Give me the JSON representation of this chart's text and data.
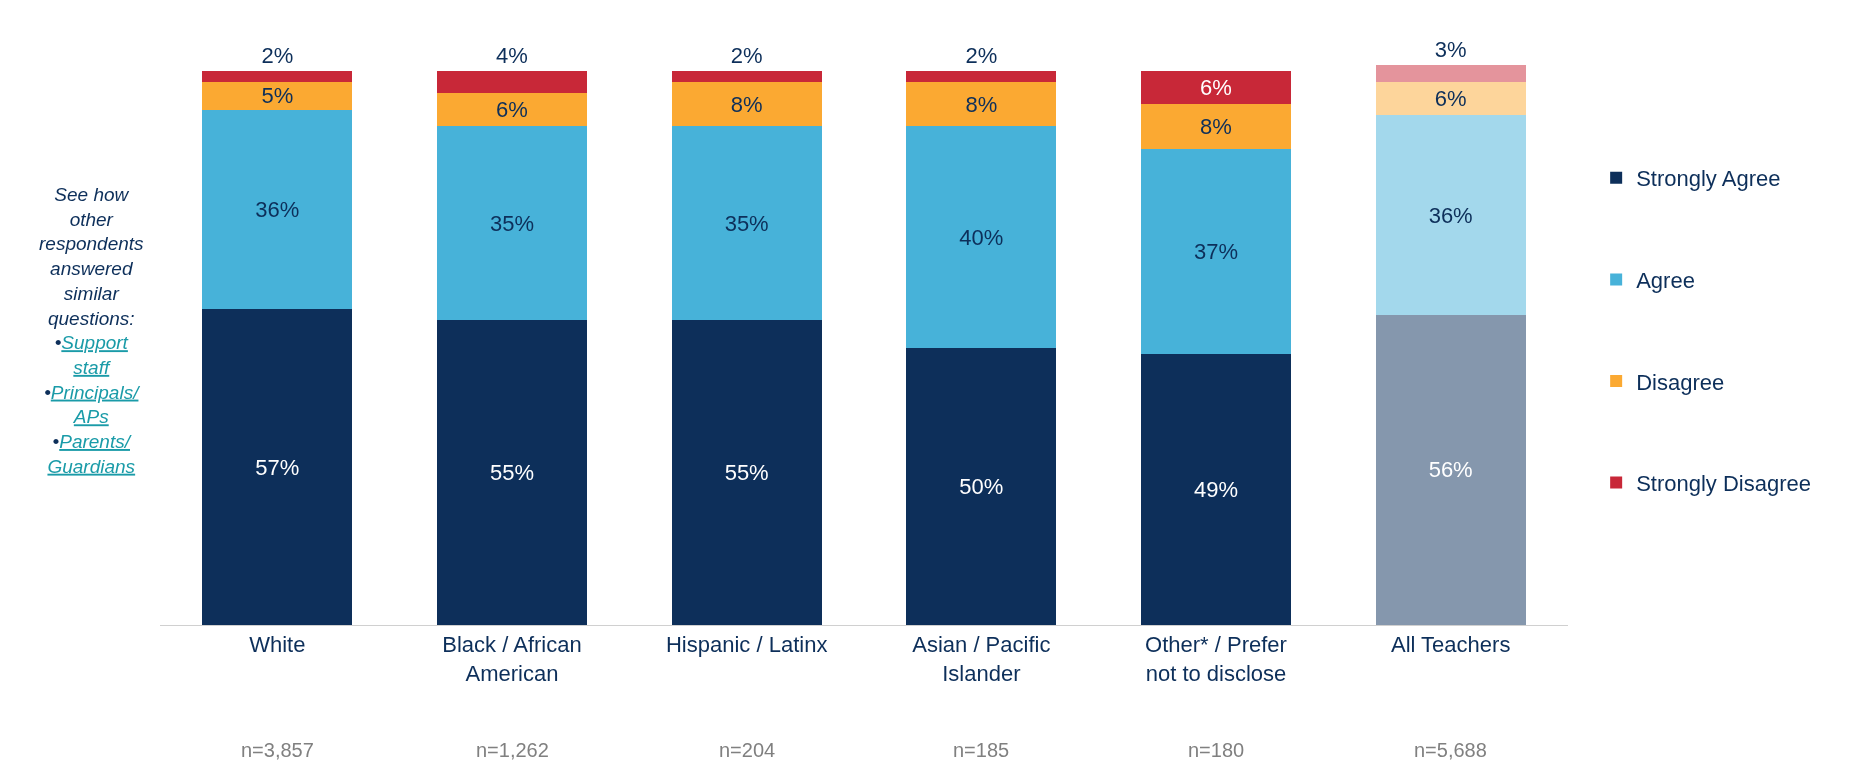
{
  "chart_data": {
    "type": "bar",
    "stacked": true,
    "legend": "right",
    "grid": false,
    "tick_labels": "x",
    "categories": [
      "White",
      "Black / African American",
      "Hispanic / Latinx",
      "Asian / Pacific Islander",
      "Other* / Prefer not to disclose",
      "All Teachers"
    ],
    "series": [
      {
        "name": "Strongly Agree",
        "color": "#0d2f5a",
        "colors": [
          "#0d2f5a",
          "#0d2f5a",
          "#0d2f5a",
          "#0d2f5a",
          "#0d2f5a",
          "#8597ad"
        ],
        "values": [
          57,
          55,
          55,
          50,
          49,
          56
        ],
        "value_labels": [
          "57%",
          "55%",
          "55%",
          "50%",
          "49%",
          "56%"
        ]
      },
      {
        "name": "Agree",
        "color": "#47b2d9",
        "colors": [
          "#47b2d9",
          "#47b2d9",
          "#47b2d9",
          "#47b2d9",
          "#47b2d9",
          "#a3d8ec"
        ],
        "values": [
          36,
          35,
          35,
          40,
          37,
          36
        ],
        "value_labels": [
          "36%",
          "35%",
          "35%",
          "40%",
          "37%",
          "36%"
        ]
      },
      {
        "name": "Disagree",
        "color": "#fba932",
        "colors": [
          "#fba932",
          "#fba932",
          "#fba932",
          "#fba932",
          "#fba932",
          "#fdd59b"
        ],
        "values": [
          5,
          6,
          8,
          8,
          8,
          6
        ],
        "value_labels": [
          "5%",
          "6%",
          "8%",
          "8%",
          "8%",
          "6%"
        ]
      },
      {
        "name": "Strongly Disagree",
        "color": "#c82838",
        "colors": [
          "#c82838",
          "#c82838",
          "#c82838",
          "#c82838",
          "#c82838",
          "#e4949c"
        ],
        "values": [
          2,
          4,
          2,
          2,
          6,
          3
        ],
        "value_labels": [
          "2%",
          "4%",
          "2%",
          "2%",
          "6%",
          "3%"
        ]
      }
    ],
    "annotations": [
      "See how other respondents answered similar questions:",
      "•Support staff",
      "•Principals/ APs",
      "•Parents/ Guardians",
      "n=3,857",
      "n=1,262",
      "n=204",
      "n=185",
      "n=180",
      "n=5,688"
    ]
  }
}
